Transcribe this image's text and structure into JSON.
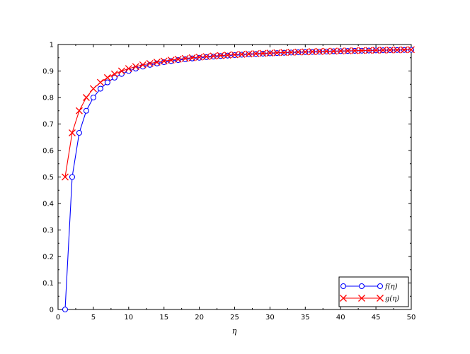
{
  "chart_data": {
    "type": "line",
    "title": "",
    "xlabel": "η",
    "ylabel": "",
    "xlim": [
      0,
      50
    ],
    "ylim": [
      0,
      1
    ],
    "x_ticks": [
      0,
      5,
      10,
      15,
      20,
      25,
      30,
      35,
      40,
      45,
      50
    ],
    "y_ticks": [
      0,
      0.1,
      0.2,
      0.3,
      0.4,
      0.5,
      0.6,
      0.7,
      0.8,
      0.9,
      1
    ],
    "x_tick_labels": [
      "0",
      "5",
      "10",
      "15",
      "20",
      "25",
      "30",
      "35",
      "40",
      "45",
      "50"
    ],
    "y_tick_labels": [
      "0",
      "0.1",
      "0.2",
      "0.3",
      "0.4",
      "0.5",
      "0.6",
      "0.7",
      "0.8",
      "0.9",
      "1"
    ],
    "grid": false,
    "legend_position": "bottom-right",
    "x": [
      1,
      2,
      3,
      4,
      5,
      6,
      7,
      8,
      9,
      10,
      11,
      12,
      13,
      14,
      15,
      16,
      17,
      18,
      19,
      20,
      21,
      22,
      23,
      24,
      25,
      26,
      27,
      28,
      29,
      30,
      31,
      32,
      33,
      34,
      35,
      36,
      37,
      38,
      39,
      40,
      41,
      42,
      43,
      44,
      45,
      46,
      47,
      48,
      49,
      50
    ],
    "series": [
      {
        "name": "f(η)",
        "marker": "circle",
        "color": "#0000ff",
        "values": [
          0,
          0.5,
          0.6667,
          0.75,
          0.8,
          0.8333,
          0.8571,
          0.875,
          0.8889,
          0.9,
          0.9091,
          0.9167,
          0.9231,
          0.9286,
          0.9333,
          0.9375,
          0.9412,
          0.9444,
          0.9474,
          0.95,
          0.9524,
          0.9545,
          0.9565,
          0.9583,
          0.96,
          0.9615,
          0.963,
          0.9643,
          0.9655,
          0.9667,
          0.9677,
          0.9688,
          0.9697,
          0.9706,
          0.9714,
          0.9722,
          0.973,
          0.9737,
          0.9744,
          0.975,
          0.9756,
          0.9762,
          0.9767,
          0.9773,
          0.9778,
          0.9783,
          0.9787,
          0.9792,
          0.9796,
          0.98
        ]
      },
      {
        "name": "g(η)",
        "marker": "x",
        "color": "#ff0000",
        "values": [
          0.5,
          0.6667,
          0.75,
          0.8,
          0.8333,
          0.8571,
          0.875,
          0.8889,
          0.9,
          0.9091,
          0.9167,
          0.9231,
          0.9286,
          0.9333,
          0.9375,
          0.9412,
          0.9444,
          0.9474,
          0.95,
          0.9524,
          0.9545,
          0.9565,
          0.9583,
          0.96,
          0.9615,
          0.963,
          0.9643,
          0.9655,
          0.9667,
          0.9677,
          0.9688,
          0.9697,
          0.9706,
          0.9714,
          0.9722,
          0.973,
          0.9737,
          0.9744,
          0.975,
          0.9756,
          0.9762,
          0.9767,
          0.9773,
          0.9778,
          0.9783,
          0.9787,
          0.9792,
          0.9796,
          0.98,
          0.9804
        ]
      }
    ]
  }
}
